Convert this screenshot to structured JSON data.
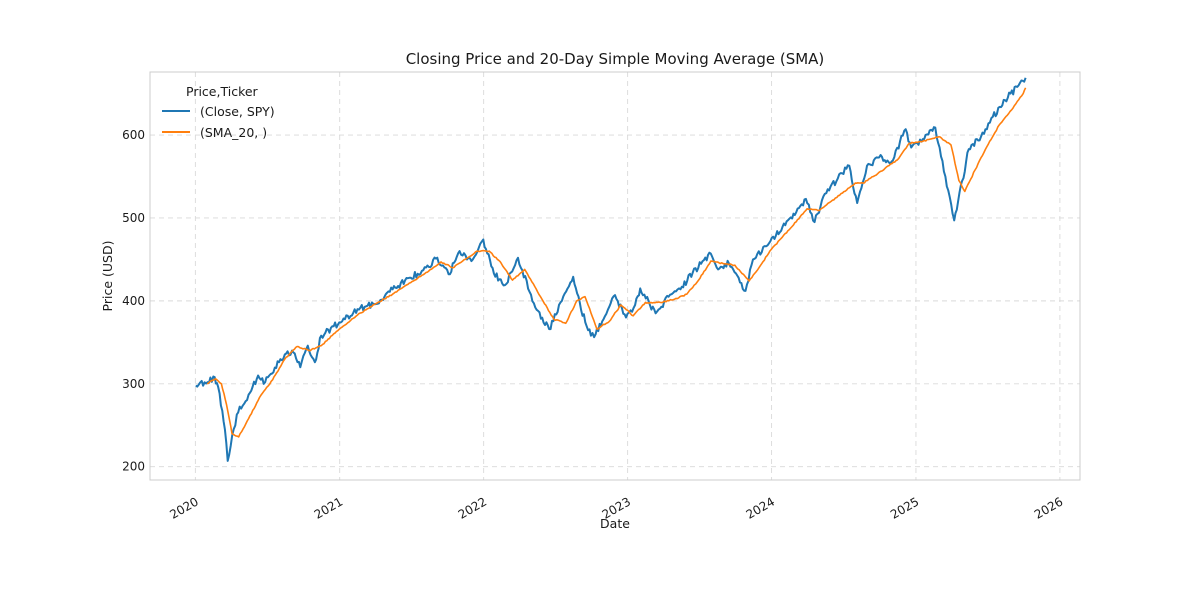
{
  "chart_data": {
    "type": "line",
    "title": "Closing Price and 20-Day Simple Moving Average (SMA)",
    "xlabel": "Date",
    "ylabel": "Price (USD)",
    "x_ticks": [
      "2020",
      "2021",
      "2022",
      "2023",
      "2024",
      "2025",
      "2026"
    ],
    "y_ticks": [
      200,
      300,
      400,
      500,
      600
    ],
    "xlim": [
      "2019-09-08",
      "2026-02-21"
    ],
    "ylim": [
      184,
      676
    ],
    "grid": true,
    "legend_title": "Price,Ticker",
    "legend_placement": "upper-left",
    "series": [
      {
        "name": "(Close, SPY)",
        "color": "#1f77b4",
        "x": [
          "2020-01-02",
          "2020-02-01",
          "2020-02-19",
          "2020-02-28",
          "2020-03-16",
          "2020-03-23",
          "2020-04-15",
          "2020-05-15",
          "2020-06-08",
          "2020-06-26",
          "2020-07-31",
          "2020-09-02",
          "2020-09-23",
          "2020-10-12",
          "2020-10-30",
          "2020-11-15",
          "2020-12-31",
          "2021-02-15",
          "2021-03-31",
          "2021-05-15",
          "2021-06-30",
          "2021-08-15",
          "2021-09-02",
          "2021-10-04",
          "2021-11-01",
          "2021-12-01",
          "2021-12-31",
          "2022-01-27",
          "2022-02-24",
          "2022-03-29",
          "2022-05-12",
          "2022-06-16",
          "2022-08-16",
          "2022-09-05",
          "2022-09-30",
          "2022-10-12",
          "2022-11-01",
          "2022-11-30",
          "2022-12-28",
          "2023-01-20",
          "2023-02-02",
          "2023-03-13",
          "2023-04-15",
          "2023-05-15",
          "2023-06-15",
          "2023-07-31",
          "2023-08-15",
          "2023-09-15",
          "2023-10-27",
          "2023-11-15",
          "2023-12-29",
          "2024-02-15",
          "2024-03-28",
          "2024-04-19",
          "2024-05-15",
          "2024-07-16",
          "2024-08-05",
          "2024-08-30",
          "2024-09-30",
          "2024-10-31",
          "2024-12-06",
          "2024-12-20",
          "2025-01-15",
          "2025-02-19",
          "2025-03-13",
          "2025-04-04",
          "2025-04-08",
          "2025-04-18",
          "2025-05-15",
          "2025-06-15",
          "2025-07-15",
          "2025-08-15",
          "2025-09-15",
          "2025-10-06"
        ],
        "values": [
          298,
          302,
          308,
          296,
          245,
          207,
          263,
          287,
          310,
          302,
          326,
          340,
          320,
          346,
          326,
          358,
          374,
          390,
          396,
          414,
          428,
          441,
          451,
          432,
          460,
          448,
          474,
          433,
          419,
          452,
          392,
          366,
          429,
          389,
          358,
          360,
          378,
          407,
          380,
          395,
          415,
          385,
          405,
          414,
          434,
          457,
          440,
          445,
          412,
          450,
          472,
          499,
          523,
          495,
          529,
          563,
          518,
          563,
          573,
          568,
          607,
          585,
          592,
          609,
          556,
          505,
          497,
          520,
          583,
          598,
          622,
          642,
          658,
          669
        ]
      },
      {
        "name": "(SMA_20, )",
        "color": "#ff7f0e",
        "x": [
          "2020-01-31",
          "2020-02-21",
          "2020-03-07",
          "2020-03-20",
          "2020-04-03",
          "2020-04-20",
          "2020-05-15",
          "2020-06-15",
          "2020-07-15",
          "2020-08-15",
          "2020-09-15",
          "2020-10-15",
          "2020-11-15",
          "2020-12-31",
          "2021-02-15",
          "2021-03-31",
          "2021-05-15",
          "2021-06-30",
          "2021-08-15",
          "2021-09-15",
          "2021-10-15",
          "2021-11-15",
          "2021-12-15",
          "2022-01-15",
          "2022-02-15",
          "2022-03-15",
          "2022-04-15",
          "2022-05-25",
          "2022-06-28",
          "2022-07-28",
          "2022-08-25",
          "2022-09-15",
          "2022-10-15",
          "2022-11-15",
          "2022-12-15",
          "2023-01-15",
          "2023-02-15",
          "2023-03-25",
          "2023-04-30",
          "2023-05-31",
          "2023-06-30",
          "2023-07-31",
          "2023-08-31",
          "2023-09-30",
          "2023-11-05",
          "2023-11-30",
          "2023-12-31",
          "2024-02-15",
          "2024-03-31",
          "2024-05-01",
          "2024-05-31",
          "2024-07-31",
          "2024-08-20",
          "2024-09-15",
          "2024-10-15",
          "2024-11-15",
          "2024-12-15",
          "2025-01-15",
          "2025-02-28",
          "2025-03-31",
          "2025-04-20",
          "2025-05-05",
          "2025-05-31",
          "2025-06-30",
          "2025-07-31",
          "2025-08-31",
          "2025-09-30",
          "2025-10-06"
        ],
        "values": [
          300,
          306,
          300,
          275,
          240,
          236,
          258,
          286,
          305,
          330,
          345,
          340,
          346,
          366,
          383,
          396,
          408,
          422,
          436,
          447,
          440,
          450,
          460,
          460,
          445,
          425,
          438,
          405,
          378,
          373,
          400,
          405,
          366,
          375,
          395,
          382,
          398,
          398,
          402,
          408,
          425,
          448,
          445,
          443,
          424,
          440,
          462,
          486,
          511,
          509,
          520,
          542,
          542,
          550,
          560,
          570,
          590,
          592,
          598,
          588,
          545,
          532,
          558,
          586,
          612,
          630,
          650,
          657
        ]
      }
    ]
  }
}
